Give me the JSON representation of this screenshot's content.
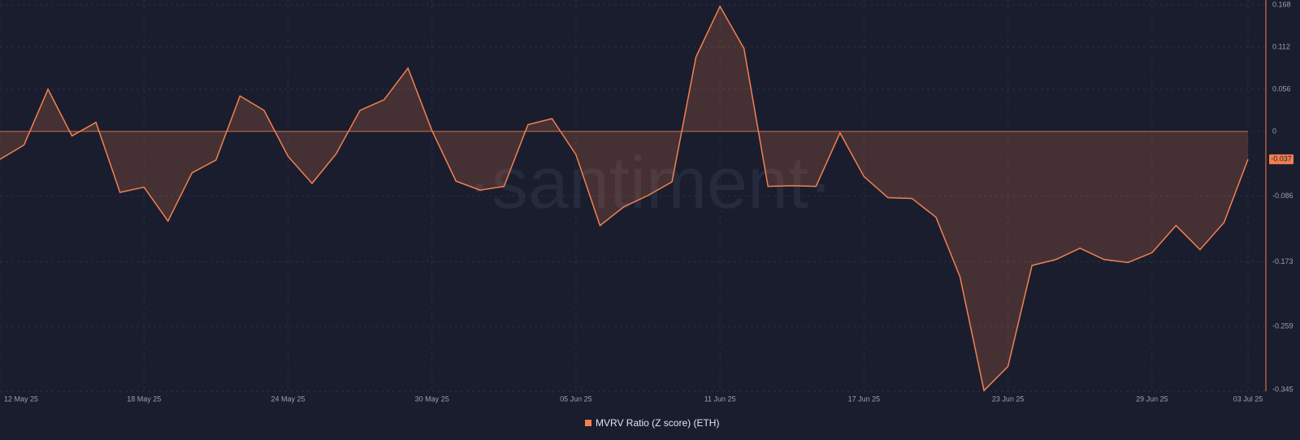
{
  "chart_data": {
    "type": "area-line",
    "watermark": "·santiment·",
    "categories": [
      "12 May 25",
      null,
      null,
      null,
      null,
      null,
      "18 May 25",
      null,
      null,
      null,
      null,
      null,
      "24 May 25",
      null,
      null,
      null,
      null,
      null,
      "30 May 25",
      null,
      null,
      null,
      null,
      null,
      "05 Jun 25",
      null,
      null,
      null,
      null,
      null,
      "11 Jun 25",
      null,
      null,
      null,
      null,
      null,
      "17 Jun 25",
      null,
      null,
      null,
      null,
      null,
      "23 Jun 25",
      null,
      null,
      null,
      null,
      null,
      "29 Jun 25",
      null,
      null,
      null,
      "03 Jul 25"
    ],
    "series": [
      {
        "name": "MVRV Ratio (Z score) (ETH)",
        "color": "#f4804f",
        "values": [
          -0.037,
          -0.018,
          0.056,
          -0.006,
          0.012,
          -0.081,
          -0.074,
          -0.119,
          -0.055,
          -0.038,
          0.047,
          0.028,
          -0.033,
          -0.069,
          -0.03,
          0.028,
          0.042,
          0.084,
          0.001,
          -0.066,
          -0.078,
          -0.073,
          0.009,
          0.017,
          -0.031,
          -0.125,
          -0.1,
          -0.085,
          -0.067,
          0.099,
          0.166,
          0.11,
          -0.073,
          -0.072,
          -0.073,
          -0.002,
          -0.06,
          -0.088,
          -0.089,
          -0.114,
          -0.193,
          -0.344,
          -0.312,
          -0.178,
          -0.17,
          -0.155,
          -0.17,
          -0.174,
          -0.161,
          -0.125,
          -0.157,
          -0.121,
          -0.037
        ]
      }
    ],
    "ylim": [
      -0.345,
      0.168
    ],
    "yticks": [
      0.168,
      0.112,
      0.056,
      0,
      -0.086,
      -0.173,
      -0.259,
      -0.345
    ],
    "grid": true
  }
}
